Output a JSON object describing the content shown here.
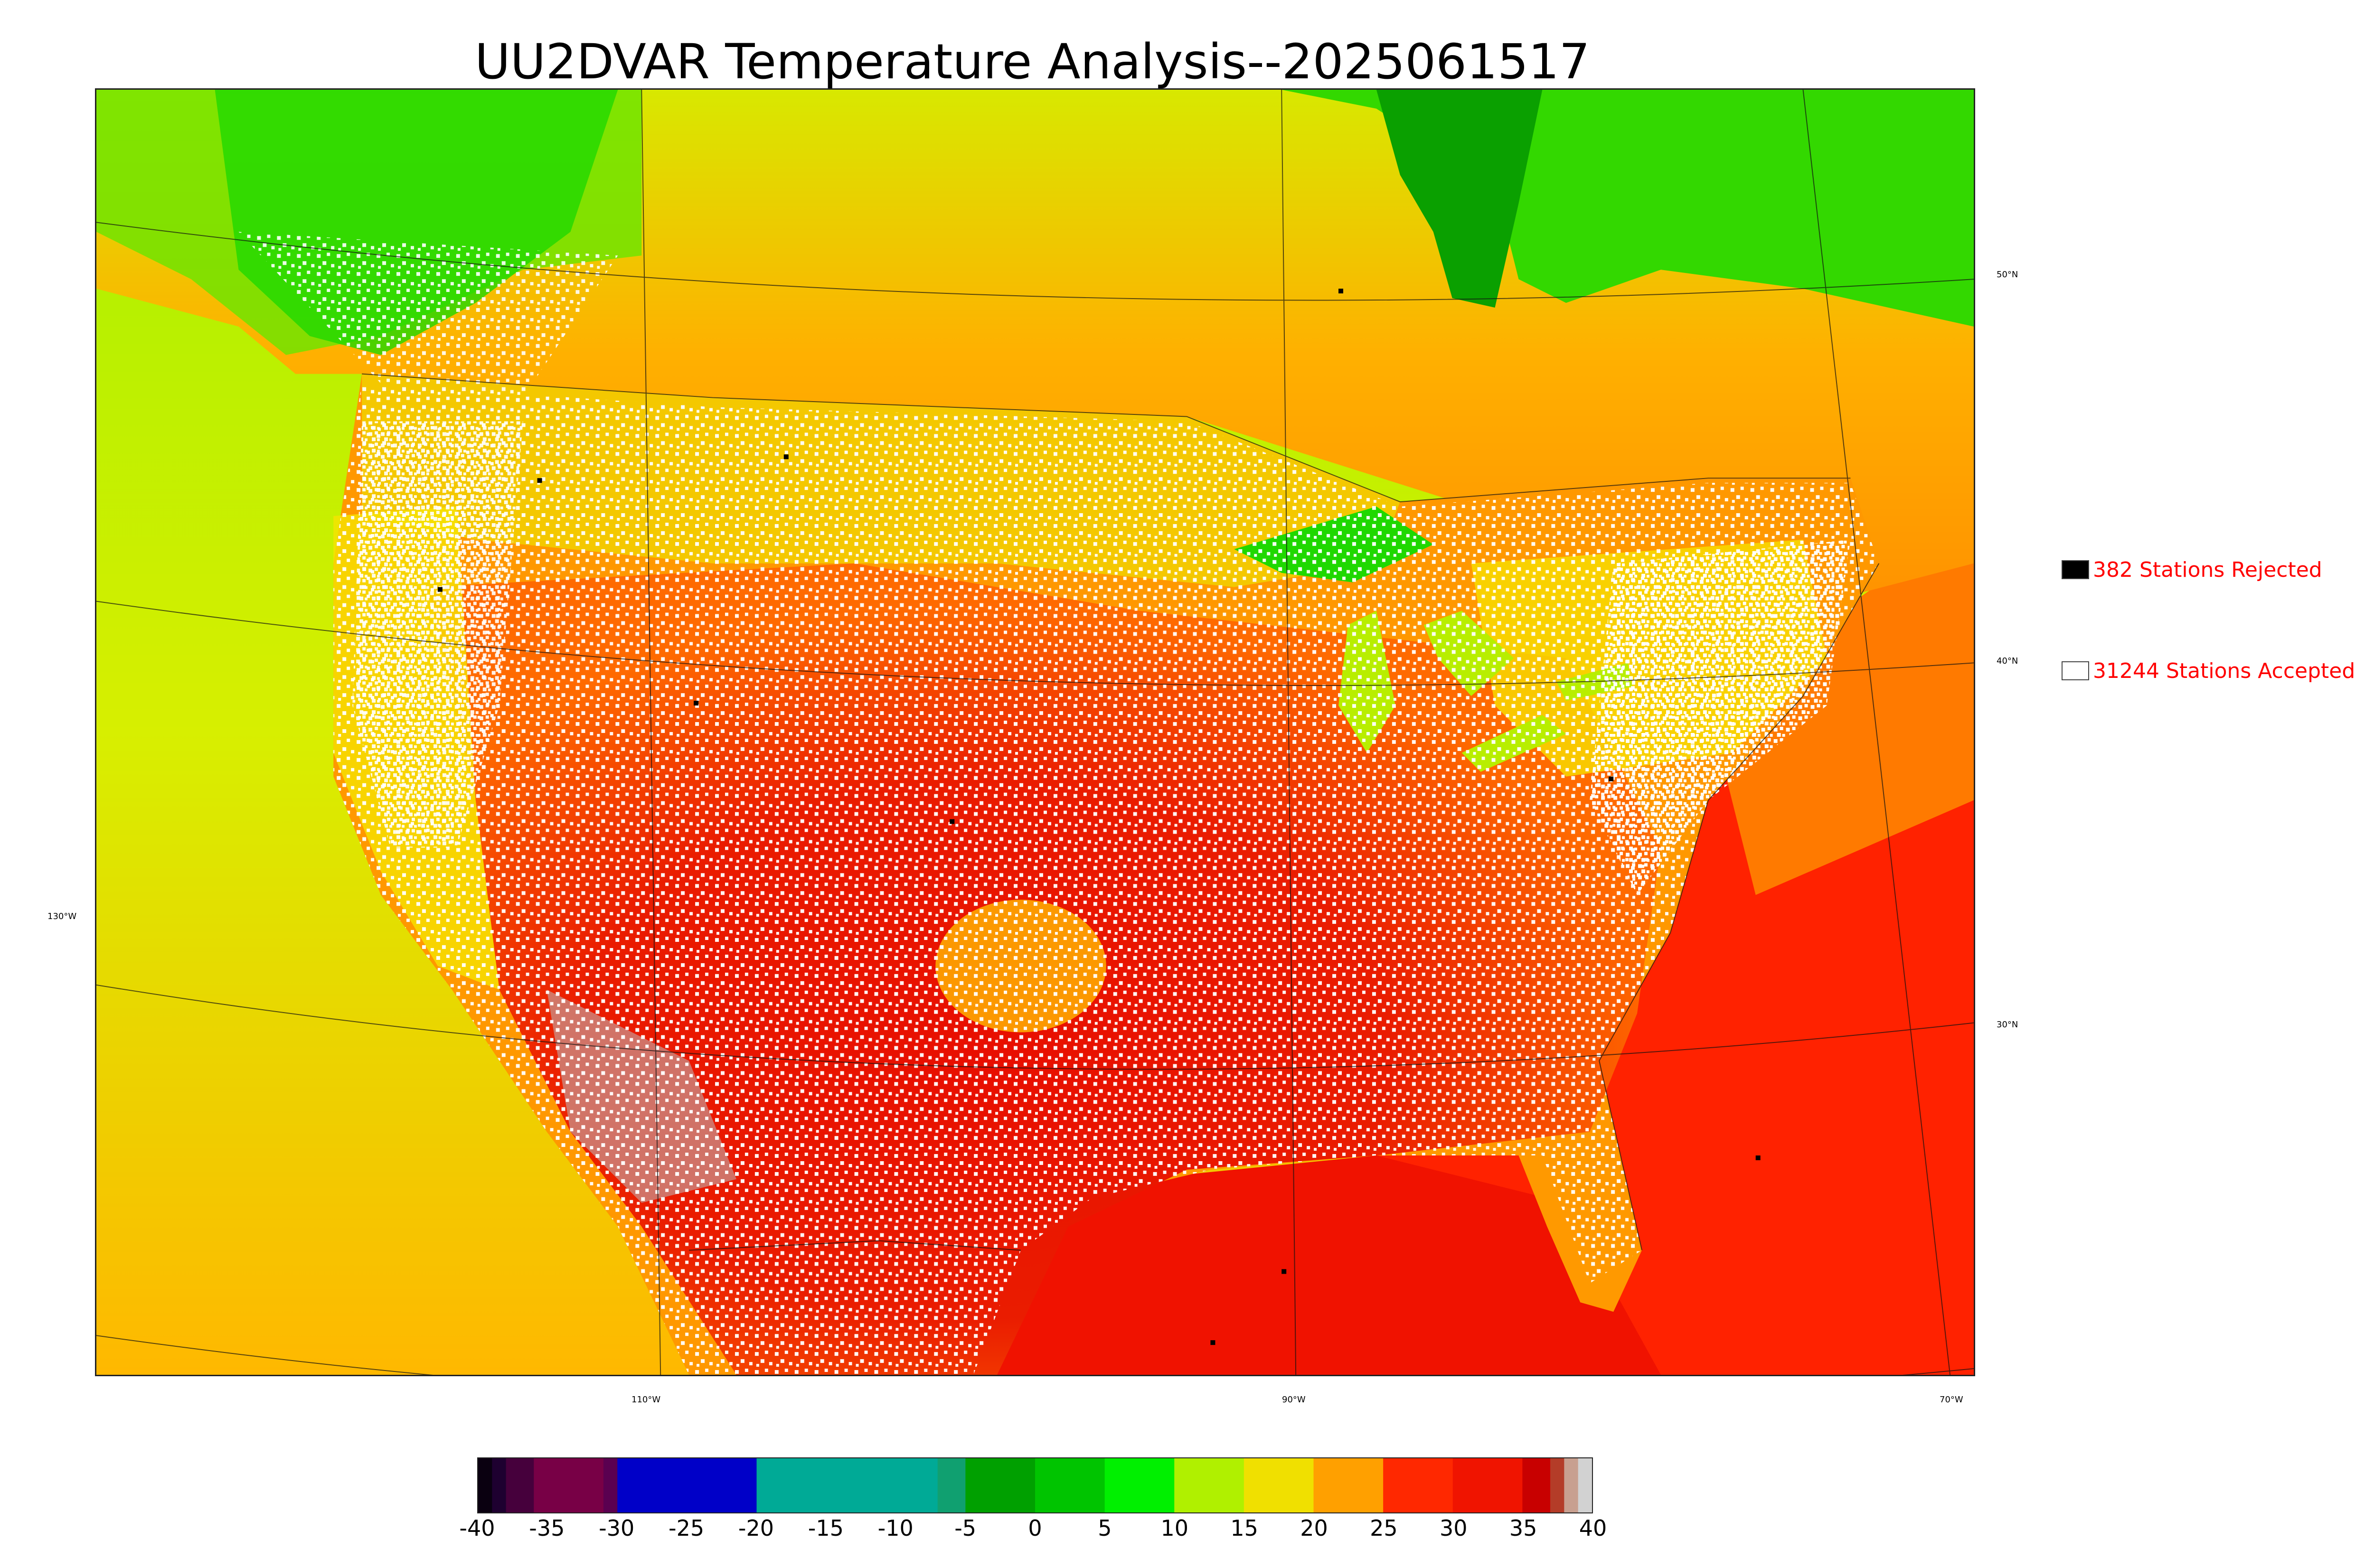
{
  "title": "UU2DVAR Temperature Analysis--2025061517",
  "map": {
    "lat_labels": [
      "50°N",
      "40°N",
      "30°N"
    ],
    "lon_labels": [
      "130°W",
      "110°W",
      "90°W",
      "70°W"
    ],
    "background_colors": {
      "ocean_west": "#d7ef00",
      "ocean_south": "#ff2a00",
      "land_hot": "#e81200",
      "land_warm": "#ff9900",
      "land_mild": "#f4dc00",
      "land_cool": "#37e600",
      "hudson_bay": "#0aa800"
    }
  },
  "legend": {
    "rejected": {
      "label": "382 Stations Rejected",
      "color": "#000000"
    },
    "accepted": {
      "label": "31244 Stations Accepted",
      "color": "#ffffff"
    },
    "text_color": "#ff0000"
  },
  "colorbar": {
    "ticks": [
      "-40",
      "-35",
      "-30",
      "-25",
      "-20",
      "-15",
      "-10",
      "-5",
      "0",
      "5",
      "10",
      "15",
      "20",
      "25",
      "30",
      "35",
      "40"
    ],
    "min": -40,
    "max": 40,
    "segments": [
      {
        "from": -40,
        "to": -39,
        "color": "#0a0010"
      },
      {
        "from": -39,
        "to": -38,
        "color": "#1e0030"
      },
      {
        "from": -38,
        "to": -36,
        "color": "#46003c"
      },
      {
        "from": -36,
        "to": -31,
        "color": "#780046"
      },
      {
        "from": -31,
        "to": -30,
        "color": "#5a0050"
      },
      {
        "from": -30,
        "to": -20,
        "color": "#0000c8"
      },
      {
        "from": -20,
        "to": -7,
        "color": "#00aa96"
      },
      {
        "from": -7,
        "to": -5,
        "color": "#10a070"
      },
      {
        "from": -5,
        "to": 0,
        "color": "#00a000"
      },
      {
        "from": 0,
        "to": 5,
        "color": "#00c400"
      },
      {
        "from": 5,
        "to": 10,
        "color": "#00f000"
      },
      {
        "from": 10,
        "to": 15,
        "color": "#b0f000"
      },
      {
        "from": 15,
        "to": 20,
        "color": "#f0e000"
      },
      {
        "from": 20,
        "to": 25,
        "color": "#ffa000"
      },
      {
        "from": 25,
        "to": 30,
        "color": "#ff2800"
      },
      {
        "from": 30,
        "to": 35,
        "color": "#f01400"
      },
      {
        "from": 35,
        "to": 37,
        "color": "#c80000"
      },
      {
        "from": 37,
        "to": 38,
        "color": "#b43c28"
      },
      {
        "from": 38,
        "to": 39,
        "color": "#c8a090"
      },
      {
        "from": 39,
        "to": 40,
        "color": "#d2d2d2"
      }
    ]
  }
}
